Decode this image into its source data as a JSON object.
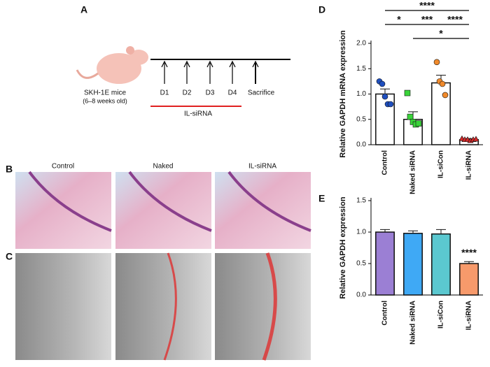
{
  "panel_labels": [
    "A",
    "B",
    "C",
    "D",
    "E"
  ],
  "timeline": {
    "mouse": "SKH-1E mice",
    "age": "(6–8 weeks old)",
    "days": [
      "D1",
      "D2",
      "D3",
      "D4",
      "Sacrifice"
    ],
    "treatment": "IL-siRNA"
  },
  "histology": {
    "columns": [
      "Control",
      "Naked",
      "IL-siRNA"
    ]
  },
  "chart_data": [
    {
      "type": "bar",
      "ylabel": "Relative GAPDH mRNA expression",
      "categories": [
        "Control",
        "Naked siRNA",
        "IL-siCon",
        "IL-siRNA"
      ],
      "values": [
        1.0,
        0.5,
        1.22,
        0.1
      ],
      "errors": [
        0.1,
        0.15,
        0.15,
        0.02
      ],
      "bar_colors": [
        "#ffffff",
        "#ffffff",
        "#ffffff",
        "#ffffff"
      ],
      "points": [
        [
          1.25,
          1.2,
          0.95,
          0.8,
          0.8
        ],
        [
          1.02,
          0.55,
          0.45,
          0.4,
          0.42
        ],
        [
          1.63,
          1.25,
          1.2,
          0.98
        ],
        [
          0.12,
          0.1,
          0.1,
          0.08,
          0.1,
          0.11
        ]
      ],
      "point_colors": [
        "#1f4fbf",
        "#3ad43a",
        "#f08a2c",
        "#d42a2a"
      ],
      "ylim": [
        0,
        2
      ],
      "yticks": [
        {
          "value": 0,
          "label": "0.0"
        },
        {
          "value": 0.5,
          "label": "0.5"
        },
        {
          "value": 1,
          "label": "1.0"
        },
        {
          "value": 1.5,
          "label": "1.5"
        },
        {
          "value": 2,
          "label": "2.0"
        }
      ],
      "annotations": [
        {
          "text": "****",
          "between": [
            0,
            3
          ]
        },
        {
          "text": "*",
          "between": [
            0,
            1
          ]
        },
        {
          "text": "***",
          "between": [
            1,
            2
          ]
        },
        {
          "text": "*",
          "between": [
            1,
            3
          ]
        },
        {
          "text": "****",
          "between": [
            2,
            3
          ]
        }
      ]
    },
    {
      "type": "bar",
      "ylabel": "Relative GAPDH expression",
      "categories": [
        "Control",
        "Naked siRNA",
        "IL-siCon",
        "IL-siRNA"
      ],
      "values": [
        1.0,
        0.98,
        0.97,
        0.5
      ],
      "errors": [
        0.04,
        0.04,
        0.07,
        0.03
      ],
      "bar_colors": [
        "#9b7fd4",
        "#3fa9f5",
        "#5bc8d0",
        "#f79a6b"
      ],
      "ylim": [
        0,
        1.5
      ],
      "yticks": [
        {
          "value": 0,
          "label": "0.0"
        },
        {
          "value": 0.5,
          "label": "0.5"
        },
        {
          "value": 1,
          "label": "1.0"
        },
        {
          "value": 1.5,
          "label": "1.5"
        }
      ],
      "annotations": [
        {
          "text": "****",
          "between": [
            3,
            3
          ]
        }
      ]
    }
  ]
}
